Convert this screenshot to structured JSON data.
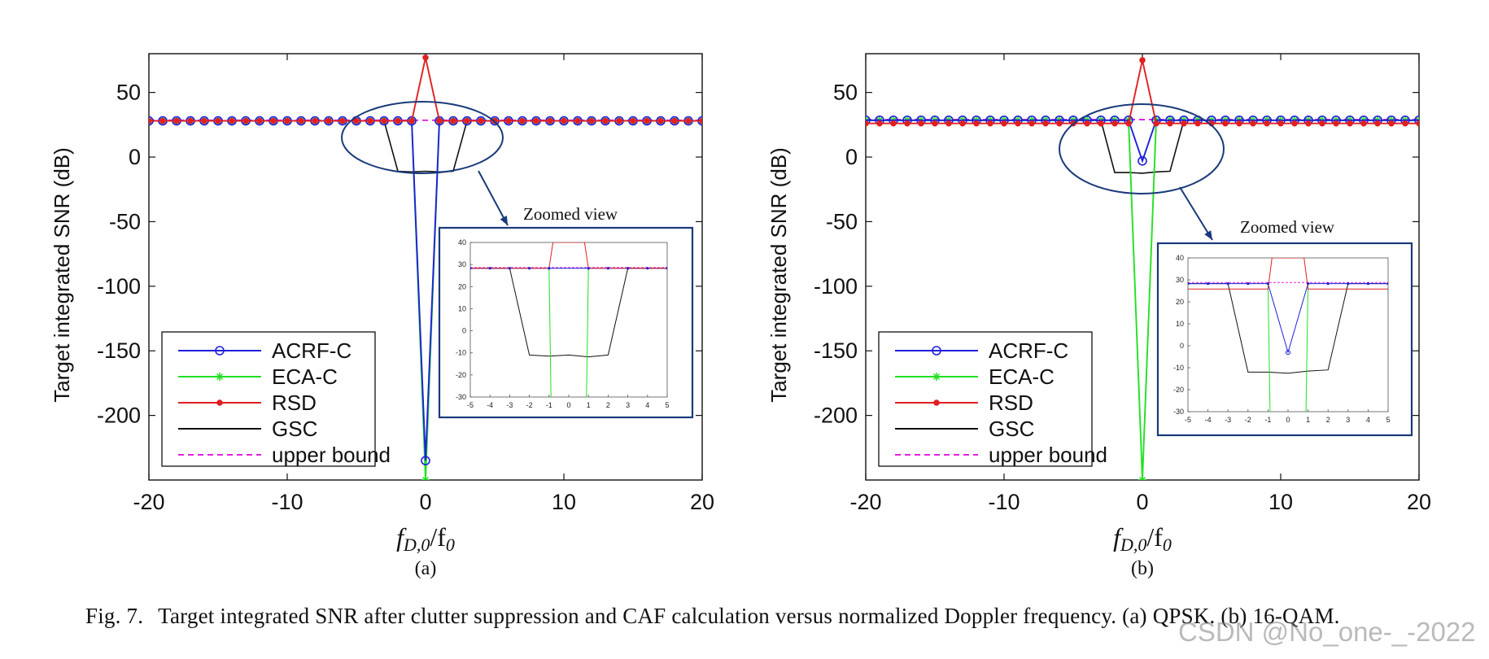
{
  "figure": {
    "caption_label": "Fig. 7.",
    "caption_text": "Target integrated SNR after clutter suppression and CAF calculation versus normalized Doppler frequency. (a) QPSK. (b) 16-QAM.",
    "watermark": "CSDN @No_one-_-2022",
    "colors": {
      "acrf_c": "#1f1fdc",
      "eca_c": "#22e022",
      "rsd": "#e02020",
      "gsc": "#111111",
      "upper_bound": "#e020e0",
      "annotation": "#1a3a7a"
    }
  },
  "chart_data": [
    {
      "type": "line",
      "panel_label": "(a)",
      "ylabel": "Target integrated SNR (dB)",
      "xlabel": "fD,0/f0",
      "xlim": [
        -20,
        20
      ],
      "ylim": [
        -250,
        80
      ],
      "xticks": [
        -20,
        -10,
        0,
        10,
        20
      ],
      "yticks": [
        50,
        0,
        -50,
        -100,
        -150,
        -200
      ],
      "legend": [
        "ACRF-C",
        "ECA-C",
        "RSD",
        "GSC",
        "upper bound"
      ],
      "legend_position": "bottom-left",
      "series": [
        {
          "name": "ACRF-C",
          "x": [
            -20,
            -1,
            0,
            1,
            20
          ],
          "y": [
            28,
            28,
            -235,
            28,
            28
          ]
        },
        {
          "name": "ECA-C",
          "x": [
            -20,
            -1,
            0,
            1,
            20
          ],
          "y": [
            28,
            28,
            -250,
            28,
            28
          ]
        },
        {
          "name": "RSD",
          "x": [
            -20,
            -1,
            0,
            1,
            20
          ],
          "y": [
            28,
            28,
            77,
            28,
            28
          ]
        },
        {
          "name": "GSC",
          "x": [
            -20,
            -3,
            -2,
            -1,
            0,
            1,
            2,
            3,
            20
          ],
          "y": [
            28,
            28,
            -11,
            -11.5,
            -11,
            -11.5,
            -11,
            28,
            28
          ]
        },
        {
          "name": "upper bound",
          "x": [
            -20,
            20
          ],
          "y": [
            28.5,
            28.5
          ]
        }
      ],
      "annotation": "Zoomed view",
      "inset": {
        "xlim": [
          -5,
          5
        ],
        "ylim": [
          -30,
          40
        ],
        "xticks": [
          -5,
          -4,
          -3,
          -2,
          -1,
          0,
          1,
          2,
          3,
          4,
          5
        ],
        "yticks": [
          40,
          30,
          20,
          10,
          0,
          -10,
          -20,
          -30
        ],
        "series": [
          {
            "name": "ACRF-C",
            "x": [
              -5,
              -1,
              1,
              5
            ],
            "y": [
              28.3,
              28.3,
              28.3,
              28.3
            ]
          },
          {
            "name": "ECA-C",
            "x": [
              -1,
              -0.9
            ],
            "y": [
              28.3,
              -30
            ]
          },
          {
            "name": "ECA-C",
            "x": [
              0.9,
              1
            ],
            "y": [
              -30,
              28.3
            ]
          },
          {
            "name": "RSD",
            "x": [
              -5,
              -1,
              -0.8,
              0.8,
              1,
              5
            ],
            "y": [
              28.3,
              28.3,
              40,
              40,
              28.3,
              28.3
            ]
          },
          {
            "name": "GSC",
            "x": [
              -5,
              -3,
              -2,
              -1,
              0,
              1,
              2,
              3,
              5
            ],
            "y": [
              28.3,
              28.3,
              -11,
              -11.5,
              -11,
              -11.8,
              -11,
              28.3,
              28.3
            ]
          },
          {
            "name": "upper bound",
            "x": [
              -5,
              5
            ],
            "y": [
              28.6,
              28.6
            ]
          }
        ]
      }
    },
    {
      "type": "line",
      "panel_label": "(b)",
      "ylabel": "Target integrated SNR (dB)",
      "xlabel": "fD,0/f0",
      "xlim": [
        -20,
        20
      ],
      "ylim": [
        -250,
        80
      ],
      "xticks": [
        -20,
        -10,
        0,
        10,
        20
      ],
      "yticks": [
        50,
        0,
        -50,
        -100,
        -150,
        -200
      ],
      "legend": [
        "ACRF-C",
        "ECA-C",
        "RSD",
        "GSC",
        "upper bound"
      ],
      "legend_position": "bottom-left",
      "series": [
        {
          "name": "ACRF-C",
          "x": [
            -20,
            -1,
            0,
            1,
            20
          ],
          "y": [
            28.5,
            28.5,
            -3,
            28.5,
            28.5
          ]
        },
        {
          "name": "ECA-C",
          "x": [
            -20,
            -1,
            0,
            1,
            20
          ],
          "y": [
            28.5,
            28.5,
            -250,
            28.5,
            28.5
          ]
        },
        {
          "name": "RSD",
          "x": [
            -20,
            -1,
            0,
            1,
            20
          ],
          "y": [
            26,
            26,
            75,
            26,
            26
          ]
        },
        {
          "name": "GSC",
          "x": [
            -20,
            -3,
            -2,
            -1,
            0,
            1,
            2,
            3,
            20
          ],
          "y": [
            28.5,
            28.5,
            -12,
            -12,
            -12.5,
            -11.5,
            -11,
            28.5,
            28.5
          ]
        },
        {
          "name": "upper bound",
          "x": [
            -20,
            20
          ],
          "y": [
            29,
            29
          ]
        }
      ],
      "annotation": "Zoomed view",
      "inset": {
        "xlim": [
          -5,
          5
        ],
        "ylim": [
          -30,
          40
        ],
        "xticks": [
          -5,
          -4,
          -3,
          -2,
          -1,
          0,
          1,
          2,
          3,
          4,
          5
        ],
        "yticks": [
          40,
          30,
          20,
          10,
          0,
          -10,
          -20,
          -30
        ],
        "series": [
          {
            "name": "ACRF-C",
            "x": [
              -5,
              -1,
              0,
              1,
              5
            ],
            "y": [
              28.3,
              28.3,
              -3,
              28.3,
              28.3
            ]
          },
          {
            "name": "ECA-C",
            "x": [
              -1,
              -0.9
            ],
            "y": [
              28.3,
              -30
            ]
          },
          {
            "name": "ECA-C",
            "x": [
              0.9,
              1
            ],
            "y": [
              -30,
              28.3
            ]
          },
          {
            "name": "RSD",
            "x": [
              -5,
              -1,
              -0.8,
              0.8,
              1,
              5
            ],
            "y": [
              25.8,
              25.8,
              40,
              40,
              25.8,
              25.8
            ]
          },
          {
            "name": "GSC",
            "x": [
              -5,
              -3,
              -2,
              -1,
              0,
              1,
              2,
              3,
              5
            ],
            "y": [
              28.3,
              28.3,
              -12,
              -12,
              -12.5,
              -11.5,
              -11,
              28.3,
              28.3
            ]
          },
          {
            "name": "upper bound",
            "x": [
              -5,
              5
            ],
            "y": [
              28.8,
              28.8
            ]
          }
        ]
      }
    }
  ]
}
